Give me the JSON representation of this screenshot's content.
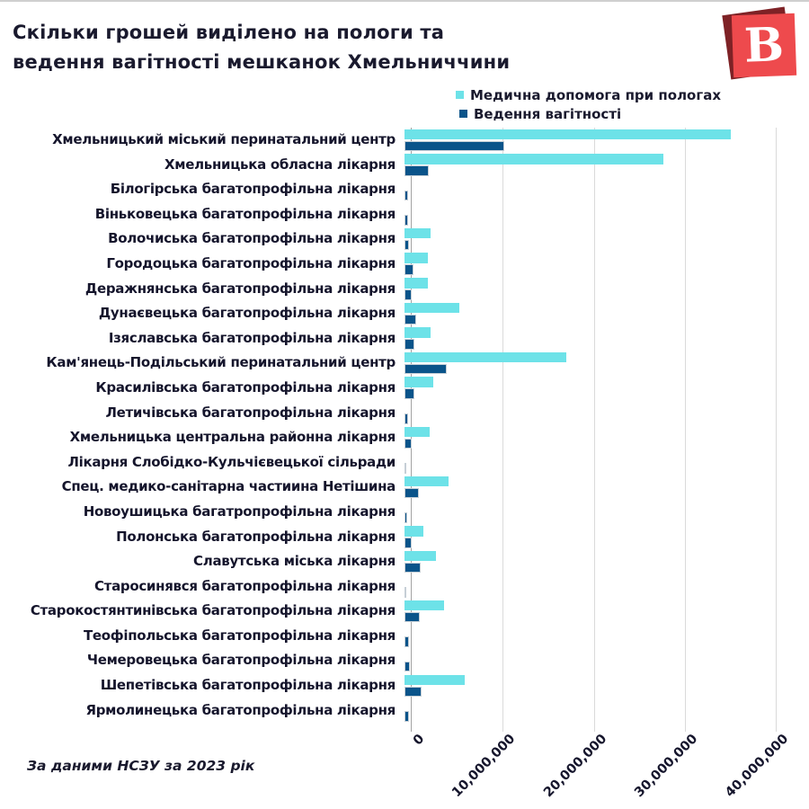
{
  "header": {
    "title_line1": "Скільки грошей виділено на пологи та",
    "title_line2": "ведення вагітності мешканок Хмельниччини"
  },
  "logo": {
    "letter": "B"
  },
  "legend": {
    "items": [
      {
        "label": "Медична допомога при пологах",
        "color": "#6DE2E8"
      },
      {
        "label": "Ведення вагітності",
        "color": "#0A548A"
      }
    ]
  },
  "chart_data": {
    "type": "bar",
    "orientation": "horizontal",
    "title": "Скільки грошей виділено на пологи та ведення вагітності мешканок Хмельниччини",
    "xlabel": "",
    "ylabel": "",
    "xlim": [
      0,
      40000000
    ],
    "grid": true,
    "legend_position": "top-right",
    "categories": [
      "Хмельницький міський перинатальний центр",
      "Хмельницька обласна лікарня",
      "Білогірська багатопрофільна лікарня",
      "Віньковецька багатопрофільна лікарня",
      "Волочиська багатопрофільна лікарня",
      "Городоцька багатопрофільна лікарня",
      "Деражнянська багатопрофільна лікарня",
      "Дунаєвецька багатопрофільна лікарня",
      "Ізяславська багатопрофільна лікарня",
      "Кам'янець-Подільський перинатальний центр",
      "Красилівська багатопрофільна лікарня",
      "Летичівська багатопрофільна лікарня",
      "Хмельницька центральна районна лікарня",
      "Лікарня Слобідко-Кульчієвецької сільради",
      "Спец. медико-санітарна частиина Нетішина",
      "Новоушицька багатропрофільна лікарня",
      "Полонська багатопрофільна лікарня",
      "Славутська міська лікарня",
      "Старосинявся багатопрофільна лікарня",
      "Старокостянтинівська багатопрофільна лікарня",
      "Теофіпольська багатопрофільна лікарня",
      "Чемеровецька багатопрофільна лікарня",
      "Шепетівська багатопрофільна лікарня",
      "Ярмолинецька багатопрофільна лікарня"
    ],
    "series": [
      {
        "name": "Медична допомога при пологах",
        "color": "#6DE2E8",
        "values": [
          35800000,
          28400000,
          0,
          0,
          2900000,
          2600000,
          2600000,
          6000000,
          2900000,
          17800000,
          3200000,
          0,
          2800000,
          0,
          4800000,
          0,
          2100000,
          3500000,
          0,
          4300000,
          0,
          0,
          6600000,
          0
        ]
      },
      {
        "name": "Ведення вагітності",
        "color": "#0A548A",
        "values": [
          11000000,
          2700000,
          350000,
          400000,
          500000,
          1000000,
          800000,
          1300000,
          1100000,
          4600000,
          1100000,
          350000,
          800000,
          200000,
          1600000,
          300000,
          800000,
          1800000,
          100000,
          1700000,
          500000,
          600000,
          1900000,
          500000
        ]
      }
    ],
    "ticks": [
      {
        "label": "0",
        "value": 0
      },
      {
        "label": "10,000,000",
        "value": 10000000
      },
      {
        "label": "20,000,000",
        "value": 20000000
      },
      {
        "label": "30,000,000",
        "value": 30000000
      },
      {
        "label": "40,000,000",
        "value": 40000000
      }
    ]
  },
  "footer": {
    "text": "За даними НСЗУ за 2023 рік"
  },
  "colors": {
    "accent_cyan": "#6DE2E8",
    "accent_blue": "#0A548A",
    "text_dark": "#1A1A2E",
    "gridline": "#DADADA",
    "axis_line": "#A3A3A3",
    "logo_front": "#EE4A4D",
    "logo_back": "#7E2226",
    "bar_outline": "#C6CFD6",
    "top_border": "#CFCFCF"
  }
}
